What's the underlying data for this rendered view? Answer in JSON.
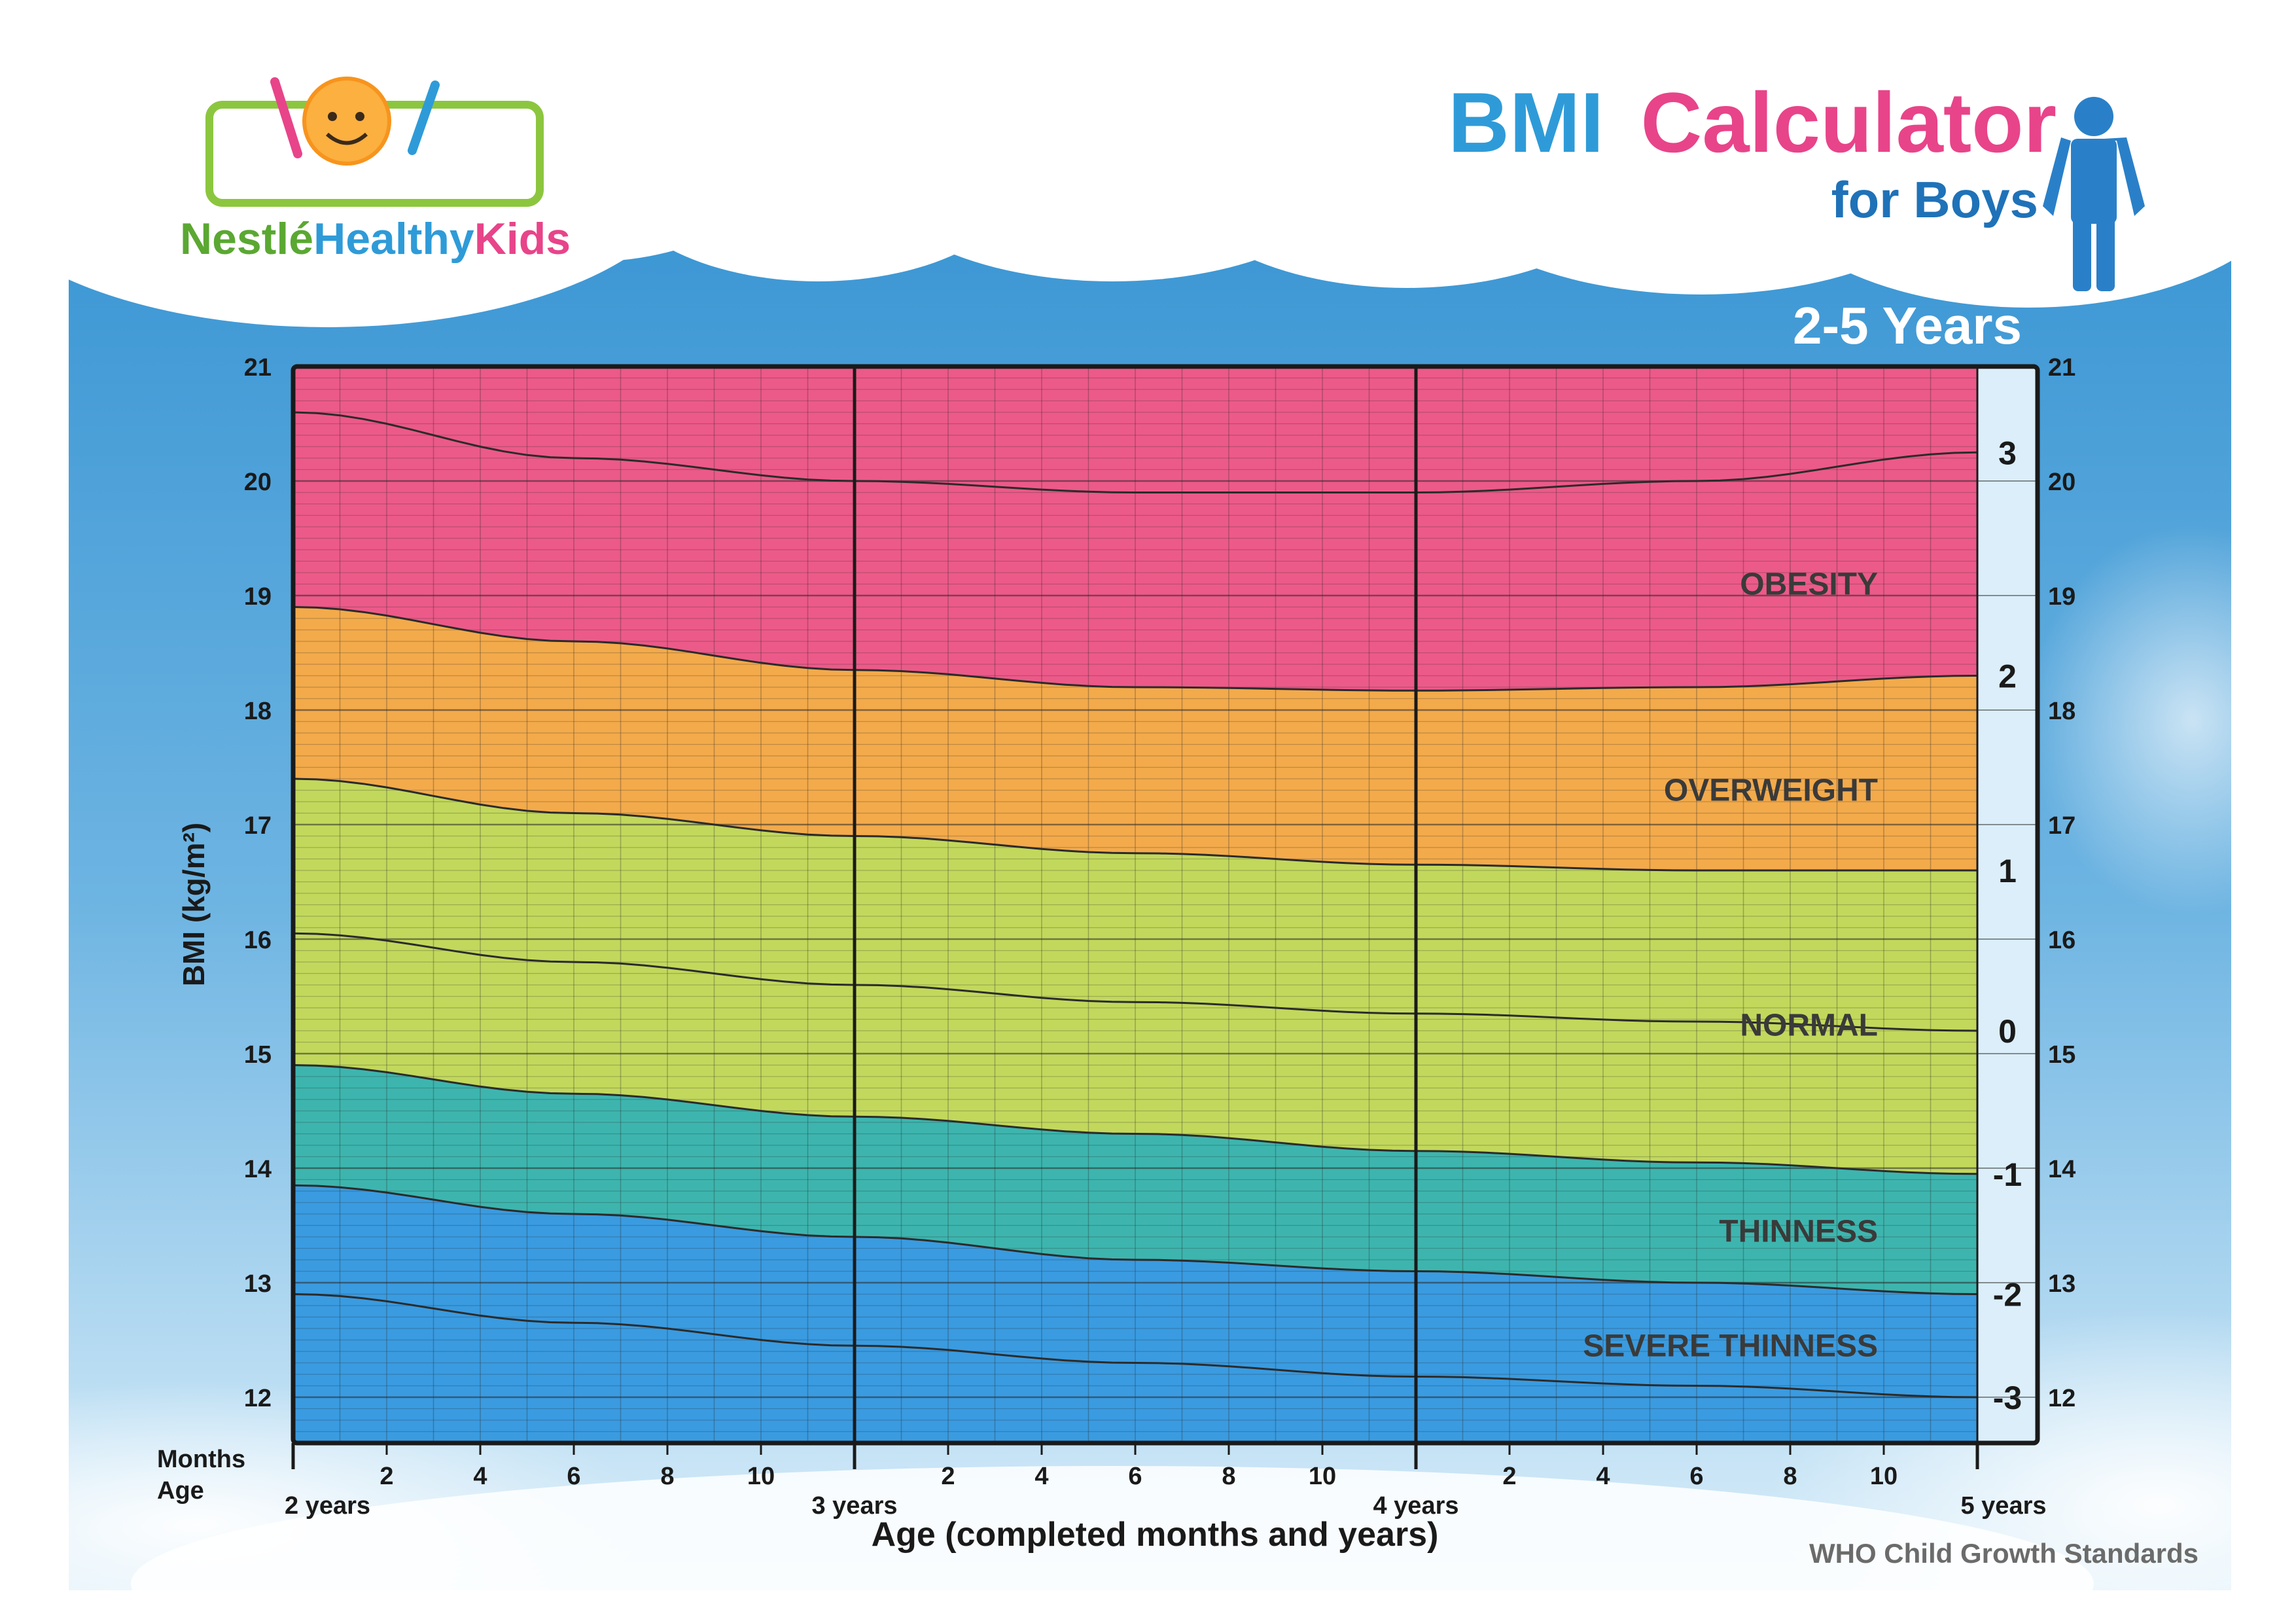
{
  "header": {
    "logo_text_prefix": "Nestlé",
    "logo_text_main": "Healthy",
    "logo_text_suffix": "Kids",
    "title_part1": "BMI",
    "title_part2": "Calculator",
    "subtitle": "for Boys",
    "age_range": "2-5 Years",
    "source": "WHO Child Growth Standards"
  },
  "colors": {
    "sky": "#3d9ad4",
    "obesity": "#ec5a89",
    "overweight": "#f3aa4b",
    "normal": "#c2d85c",
    "thinness": "#3db5ae",
    "severe_thinness": "#3a9be0",
    "title_blue": "#2e9bd8",
    "title_pink": "#e8448a",
    "subtitle_blue": "#1f72b8"
  },
  "chart_data": {
    "type": "area",
    "ylabel": "BMI (kg/m²)",
    "xlabel": "Age (completed months and years)",
    "xlim": [
      24,
      60
    ],
    "ylim": [
      11.6,
      21
    ],
    "y_ticks": [
      "12",
      "13",
      "14",
      "15",
      "16",
      "17",
      "18",
      "19",
      "20",
      "21"
    ],
    "x_row_labels": {
      "months": "Months",
      "age": "Age"
    },
    "year_labels": [
      {
        "month": 24,
        "label": "2 years"
      },
      {
        "month": 36,
        "label": "3 years"
      },
      {
        "month": 48,
        "label": "4 years"
      },
      {
        "month": 60,
        "label": "5 years"
      }
    ],
    "month_labels": [
      "2",
      "4",
      "6",
      "8",
      "10",
      "2",
      "4",
      "6",
      "8",
      "10",
      "2",
      "4",
      "6",
      "8",
      "10"
    ],
    "x": [
      24,
      30,
      36,
      42,
      48,
      54,
      60
    ],
    "series": [
      {
        "name": "3",
        "values": [
          20.6,
          20.2,
          20.0,
          19.9,
          19.9,
          20.0,
          20.25
        ]
      },
      {
        "name": "2",
        "values": [
          18.9,
          18.6,
          18.35,
          18.2,
          18.17,
          18.2,
          18.3
        ]
      },
      {
        "name": "1",
        "values": [
          17.4,
          17.1,
          16.9,
          16.75,
          16.65,
          16.6,
          16.6
        ]
      },
      {
        "name": "0",
        "values": [
          16.05,
          15.8,
          15.6,
          15.45,
          15.35,
          15.28,
          15.2
        ]
      },
      {
        "name": "-1",
        "values": [
          14.9,
          14.65,
          14.45,
          14.3,
          14.15,
          14.05,
          13.95
        ]
      },
      {
        "name": "-2",
        "values": [
          13.85,
          13.6,
          13.4,
          13.2,
          13.1,
          13.0,
          12.9
        ]
      },
      {
        "name": "-3",
        "values": [
          12.9,
          12.65,
          12.45,
          12.3,
          12.18,
          12.1,
          12.0
        ]
      }
    ],
    "zones": [
      {
        "label": "OBESITY",
        "y": 19.1
      },
      {
        "label": "OVERWEIGHT",
        "y": 17.3
      },
      {
        "label": "NORMAL",
        "y": 15.25
      },
      {
        "label": "THINNESS",
        "y": 13.45
      },
      {
        "label": "SEVERE THINNESS",
        "y": 12.45
      }
    ]
  }
}
